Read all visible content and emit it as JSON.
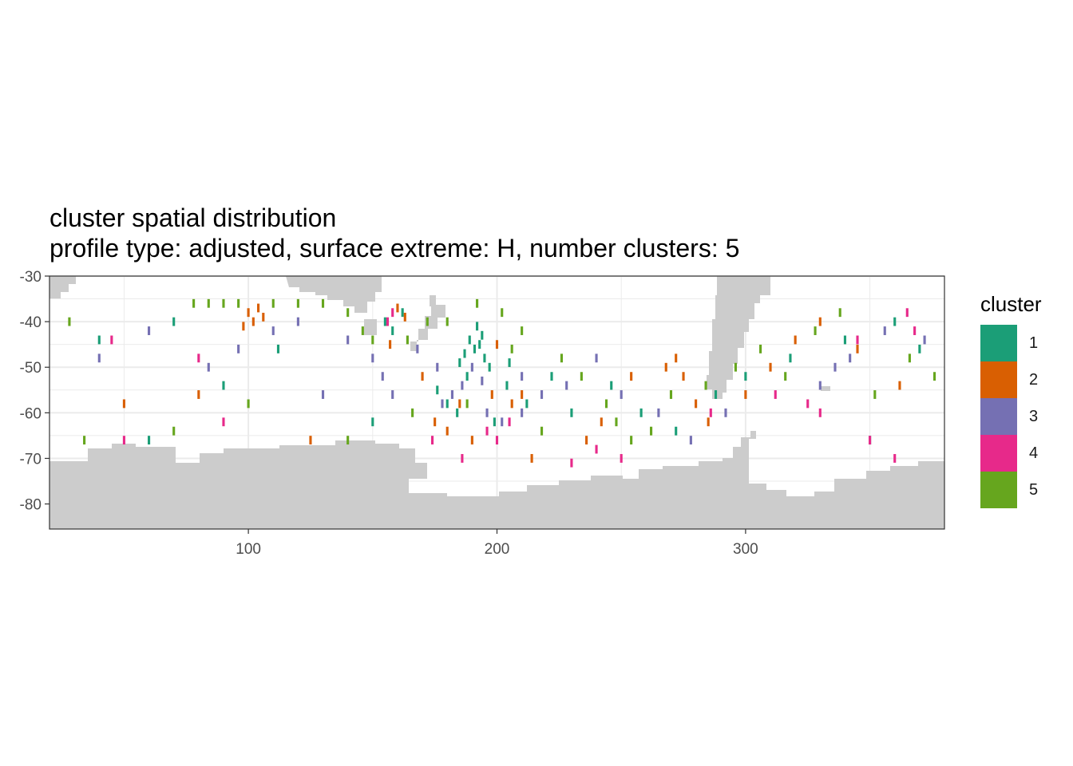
{
  "title": "cluster spatial distribution",
  "subtitle": "profile type: adjusted, surface extreme: H, number clusters: 5",
  "legend": {
    "title": "cluster",
    "items": [
      {
        "label": "1",
        "color": "#1B9E77"
      },
      {
        "label": "2",
        "color": "#D95F02"
      },
      {
        "label": "3",
        "color": "#7570B3"
      },
      {
        "label": "4",
        "color": "#E7298A"
      },
      {
        "label": "5",
        "color": "#66A61E"
      }
    ]
  },
  "chart_data": {
    "type": "heatmap",
    "title": "cluster spatial distribution",
    "subtitle": "profile type: adjusted, surface extreme: H, number clusters: 5",
    "xlabel": "",
    "ylabel": "",
    "xlim": [
      20,
      380
    ],
    "ylim": [
      -85.5,
      -30
    ],
    "x_ticks": [
      100,
      200,
      300
    ],
    "y_ticks": [
      -30,
      -40,
      -50,
      -60,
      -70,
      -80
    ],
    "cell_size_deg": 1,
    "grid": true,
    "land_color": "#CCCCCC",
    "legend_position": "right",
    "series": [
      {
        "name": "1",
        "color": "#1B9E77",
        "points": [
          [
            189,
            -44
          ],
          [
            191,
            -46
          ],
          [
            193,
            -45
          ],
          [
            187,
            -47
          ],
          [
            185,
            -49
          ],
          [
            195,
            -48
          ],
          [
            197,
            -50
          ],
          [
            188,
            -52
          ],
          [
            192,
            -41
          ],
          [
            194,
            -43
          ],
          [
            176,
            -55
          ],
          [
            180,
            -58
          ],
          [
            155,
            -40
          ],
          [
            158,
            -42
          ],
          [
            162,
            -38
          ],
          [
            204,
            -54
          ],
          [
            212,
            -58
          ],
          [
            246,
            -54
          ],
          [
            258,
            -60
          ],
          [
            272,
            -64
          ],
          [
            288,
            -56
          ],
          [
            300,
            -52
          ],
          [
            318,
            -48
          ],
          [
            340,
            -44
          ],
          [
            360,
            -40
          ],
          [
            370,
            -46
          ],
          [
            350,
            -66
          ],
          [
            230,
            -60
          ],
          [
            222,
            -52
          ],
          [
            150,
            -62
          ],
          [
            112,
            -46
          ],
          [
            90,
            -54
          ],
          [
            70,
            -40
          ],
          [
            60,
            -66
          ],
          [
            40,
            -44
          ],
          [
            184,
            -60
          ],
          [
            199,
            -62
          ],
          [
            205,
            -49
          ]
        ]
      },
      {
        "name": "2",
        "color": "#D95F02",
        "points": [
          [
            100,
            -38
          ],
          [
            102,
            -40
          ],
          [
            104,
            -37
          ],
          [
            98,
            -41
          ],
          [
            106,
            -39
          ],
          [
            160,
            -37
          ],
          [
            163,
            -39
          ],
          [
            157,
            -45
          ],
          [
            175,
            -62
          ],
          [
            180,
            -64
          ],
          [
            185,
            -58
          ],
          [
            198,
            -56
          ],
          [
            206,
            -58
          ],
          [
            210,
            -56
          ],
          [
            254,
            -52
          ],
          [
            268,
            -50
          ],
          [
            272,
            -48
          ],
          [
            275,
            -52
          ],
          [
            280,
            -58
          ],
          [
            285,
            -62
          ],
          [
            300,
            -56
          ],
          [
            310,
            -50
          ],
          [
            320,
            -44
          ],
          [
            330,
            -40
          ],
          [
            345,
            -46
          ],
          [
            362,
            -54
          ],
          [
            236,
            -66
          ],
          [
            242,
            -62
          ],
          [
            125,
            -66
          ],
          [
            80,
            -56
          ],
          [
            50,
            -58
          ],
          [
            170,
            -52
          ],
          [
            200,
            -45
          ],
          [
            214,
            -70
          ],
          [
            190,
            -66
          ]
        ]
      },
      {
        "name": "3",
        "color": "#7570B3",
        "points": [
          [
            182,
            -56
          ],
          [
            178,
            -58
          ],
          [
            186,
            -54
          ],
          [
            190,
            -50
          ],
          [
            196,
            -60
          ],
          [
            202,
            -62
          ],
          [
            210,
            -60
          ],
          [
            218,
            -56
          ],
          [
            228,
            -54
          ],
          [
            150,
            -48
          ],
          [
            154,
            -52
          ],
          [
            158,
            -56
          ],
          [
            140,
            -44
          ],
          [
            120,
            -40
          ],
          [
            110,
            -42
          ],
          [
            96,
            -46
          ],
          [
            84,
            -50
          ],
          [
            60,
            -42
          ],
          [
            40,
            -48
          ],
          [
            330,
            -54
          ],
          [
            336,
            -50
          ],
          [
            342,
            -48
          ],
          [
            356,
            -42
          ],
          [
            372,
            -44
          ],
          [
            265,
            -60
          ],
          [
            278,
            -66
          ],
          [
            292,
            -60
          ],
          [
            250,
            -56
          ],
          [
            240,
            -48
          ],
          [
            168,
            -46
          ],
          [
            176,
            -50
          ],
          [
            194,
            -53
          ],
          [
            210,
            -52
          ],
          [
            130,
            -56
          ]
        ]
      },
      {
        "name": "4",
        "color": "#E7298A",
        "points": [
          [
            156,
            -40
          ],
          [
            158,
            -38
          ],
          [
            196,
            -64
          ],
          [
            200,
            -66
          ],
          [
            205,
            -62
          ],
          [
            240,
            -68
          ],
          [
            250,
            -70
          ],
          [
            286,
            -60
          ],
          [
            325,
            -58
          ],
          [
            330,
            -60
          ],
          [
            345,
            -44
          ],
          [
            350,
            -66
          ],
          [
            360,
            -70
          ],
          [
            365,
            -38
          ],
          [
            368,
            -42
          ],
          [
            90,
            -62
          ],
          [
            50,
            -66
          ],
          [
            45,
            -44
          ],
          [
            80,
            -48
          ],
          [
            174,
            -66
          ],
          [
            186,
            -70
          ],
          [
            230,
            -71
          ],
          [
            312,
            -56
          ]
        ]
      },
      {
        "name": "5",
        "color": "#66A61E",
        "points": [
          [
            78,
            -36
          ],
          [
            84,
            -36
          ],
          [
            90,
            -36
          ],
          [
            96,
            -36
          ],
          [
            110,
            -36
          ],
          [
            120,
            -36
          ],
          [
            130,
            -36
          ],
          [
            140,
            -38
          ],
          [
            146,
            -42
          ],
          [
            150,
            -44
          ],
          [
            164,
            -44
          ],
          [
            172,
            -40
          ],
          [
            180,
            -40
          ],
          [
            192,
            -36
          ],
          [
            202,
            -38
          ],
          [
            210,
            -42
          ],
          [
            226,
            -48
          ],
          [
            234,
            -52
          ],
          [
            248,
            -62
          ],
          [
            254,
            -66
          ],
          [
            262,
            -64
          ],
          [
            270,
            -56
          ],
          [
            284,
            -54
          ],
          [
            296,
            -50
          ],
          [
            306,
            -46
          ],
          [
            316,
            -52
          ],
          [
            328,
            -42
          ],
          [
            338,
            -38
          ],
          [
            352,
            -56
          ],
          [
            366,
            -48
          ],
          [
            376,
            -52
          ],
          [
            244,
            -58
          ],
          [
            218,
            -64
          ],
          [
            166,
            -60
          ],
          [
            140,
            -66
          ],
          [
            100,
            -58
          ],
          [
            70,
            -64
          ],
          [
            34,
            -66
          ],
          [
            28,
            -40
          ],
          [
            206,
            -46
          ],
          [
            188,
            -58
          ]
        ]
      }
    ]
  }
}
